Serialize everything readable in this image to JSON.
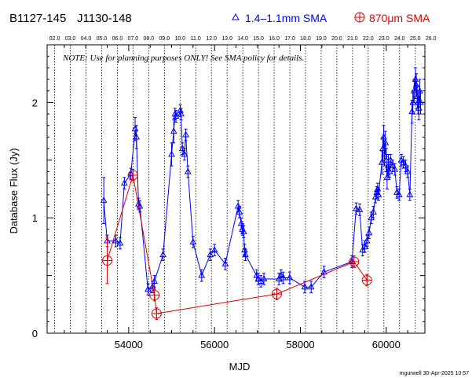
{
  "header": {
    "source_primary": "B1127-145",
    "source_alt": "J1130-148",
    "legend_blue": "1.4–1.1mm SMA",
    "legend_red": "870μm SMA"
  },
  "note": "NOTE: Use for planning purposes ONLY! See SMA policy for details.",
  "footer": "mgurwell 30-Apr-2025 10:57",
  "colors": {
    "blue": "#0000ff",
    "red": "#e00000",
    "axis": "#000000"
  },
  "chart_data": {
    "type": "scatter",
    "xlabel": "MJD",
    "ylabel": "Database Flux (Jy)",
    "xlim": [
      52100,
      60900
    ],
    "ylim": [
      0,
      2.5
    ],
    "x_ticks": [
      54000,
      56000,
      58000,
      60000
    ],
    "y_ticks": [
      0,
      1,
      2
    ],
    "top_axis_labels": [
      "02.0",
      "03.0",
      "04.0",
      "05.0",
      "06.0",
      "07.0",
      "08.0",
      "09.0",
      "10.0",
      "11.0",
      "12.0",
      "13.0",
      "14.0",
      "15.0",
      "16.0",
      "17.0",
      "18.0",
      "19.0",
      "20.0",
      "21.0",
      "22.0",
      "23.0",
      "24.0",
      "25.0",
      "26.0"
    ],
    "top_axis_mjd": [
      52275,
      52640,
      53005,
      53371,
      53736,
      54101,
      54466,
      54832,
      55197,
      55562,
      55927,
      56293,
      56658,
      57023,
      57388,
      57754,
      58119,
      58484,
      58849,
      59215,
      59580,
      59945,
      60310,
      60676,
      61041
    ],
    "series": [
      {
        "name": "1.4–1.1mm SMA",
        "color": "#0000ff",
        "points": [
          [
            53420,
            1.15,
            0.2
          ],
          [
            53500,
            0.8,
            0.05
          ],
          [
            53700,
            0.8,
            0.05
          ],
          [
            53800,
            0.78,
            0.05
          ],
          [
            53900,
            1.3,
            0.05
          ],
          [
            54050,
            1.38,
            0.05
          ],
          [
            54150,
            1.77,
            0.1
          ],
          [
            54180,
            1.7,
            0.1
          ],
          [
            54230,
            1.12,
            0.05
          ],
          [
            54260,
            1.1,
            0.05
          ],
          [
            54450,
            0.38,
            0.05
          ],
          [
            54550,
            0.4,
            0.05
          ],
          [
            54600,
            0.45,
            0.05
          ],
          [
            54800,
            0.68,
            0.05
          ],
          [
            55000,
            1.55,
            0.1
          ],
          [
            55050,
            1.75,
            0.1
          ],
          [
            55080,
            1.9,
            0.05
          ],
          [
            55100,
            1.88,
            0.05
          ],
          [
            55200,
            1.93,
            0.05
          ],
          [
            55220,
            1.9,
            0.05
          ],
          [
            55250,
            1.6,
            0.05
          ],
          [
            55300,
            1.55,
            0.05
          ],
          [
            55330,
            1.72,
            0.05
          ],
          [
            55380,
            1.4,
            0.05
          ],
          [
            55500,
            0.79,
            0.05
          ],
          [
            55700,
            0.5,
            0.05
          ],
          [
            55900,
            0.68,
            0.05
          ],
          [
            56000,
            0.72,
            0.05
          ],
          [
            56250,
            0.6,
            0.05
          ],
          [
            56550,
            1.1,
            0.05
          ],
          [
            56580,
            1.05,
            0.05
          ],
          [
            56620,
            0.95,
            0.05
          ],
          [
            56650,
            0.9,
            0.05
          ],
          [
            56680,
            0.88,
            0.05
          ],
          [
            56700,
            0.72,
            0.05
          ],
          [
            56720,
            0.68,
            0.05
          ],
          [
            56980,
            0.5,
            0.05
          ],
          [
            57020,
            0.47,
            0.05
          ],
          [
            57080,
            0.45,
            0.05
          ],
          [
            57150,
            0.47,
            0.05
          ],
          [
            57500,
            0.47,
            0.05
          ],
          [
            57550,
            0.5,
            0.05
          ],
          [
            57600,
            0.48,
            0.05
          ],
          [
            57750,
            0.48,
            0.05
          ],
          [
            58100,
            0.4,
            0.05
          ],
          [
            58250,
            0.4,
            0.05
          ],
          [
            58550,
            0.53,
            0.05
          ],
          [
            59200,
            0.62,
            0.05
          ],
          [
            59300,
            1.08,
            0.05
          ],
          [
            59380,
            1.07,
            0.05
          ],
          [
            59450,
            0.72,
            0.05
          ],
          [
            59500,
            0.75,
            0.05
          ],
          [
            59550,
            0.8,
            0.05
          ],
          [
            59600,
            0.87,
            0.05
          ],
          [
            59650,
            1.0,
            0.05
          ],
          [
            59700,
            1.05,
            0.05
          ],
          [
            59750,
            1.18,
            0.05
          ],
          [
            59780,
            1.22,
            0.05
          ],
          [
            59800,
            1.25,
            0.05
          ],
          [
            59820,
            1.2,
            0.05
          ],
          [
            59900,
            1.48,
            0.1
          ],
          [
            59920,
            1.6,
            0.1
          ],
          [
            59940,
            1.7,
            0.1
          ],
          [
            59960,
            1.55,
            0.1
          ],
          [
            59980,
            1.65,
            0.1
          ],
          [
            60000,
            1.5,
            0.1
          ],
          [
            60020,
            1.35,
            0.1
          ],
          [
            60050,
            1.45,
            0.1
          ],
          [
            60080,
            1.4,
            0.05
          ],
          [
            60100,
            1.5,
            0.05
          ],
          [
            60150,
            1.45,
            0.05
          ],
          [
            60200,
            1.42,
            0.05
          ],
          [
            60250,
            1.22,
            0.05
          ],
          [
            60300,
            1.2,
            0.05
          ],
          [
            60350,
            1.5,
            0.05
          ],
          [
            60400,
            1.48,
            0.05
          ],
          [
            60450,
            1.45,
            0.05
          ],
          [
            60500,
            1.4,
            0.05
          ],
          [
            60550,
            1.2,
            0.05
          ],
          [
            60600,
            1.92,
            0.1
          ],
          [
            60620,
            2.0,
            0.1
          ],
          [
            60650,
            2.1,
            0.1
          ],
          [
            60680,
            2.2,
            0.1
          ],
          [
            60700,
            2.15,
            0.1
          ],
          [
            60720,
            2.05,
            0.1
          ],
          [
            60740,
            2.0,
            0.1
          ],
          [
            60760,
            1.95,
            0.1
          ],
          [
            60780,
            2.1,
            0.1
          ],
          [
            60800,
            2.0,
            0.1
          ]
        ]
      },
      {
        "name": "870μm SMA",
        "color": "#e00000",
        "points": [
          [
            53500,
            0.63,
            0.2
          ],
          [
            54100,
            1.37,
            0.05
          ],
          [
            54600,
            0.33,
            0.05
          ],
          [
            54650,
            0.17,
            0.05
          ],
          [
            57450,
            0.34,
            0.05
          ],
          [
            59250,
            0.62,
            0.05
          ],
          [
            59550,
            0.46,
            0.05
          ]
        ]
      }
    ]
  }
}
